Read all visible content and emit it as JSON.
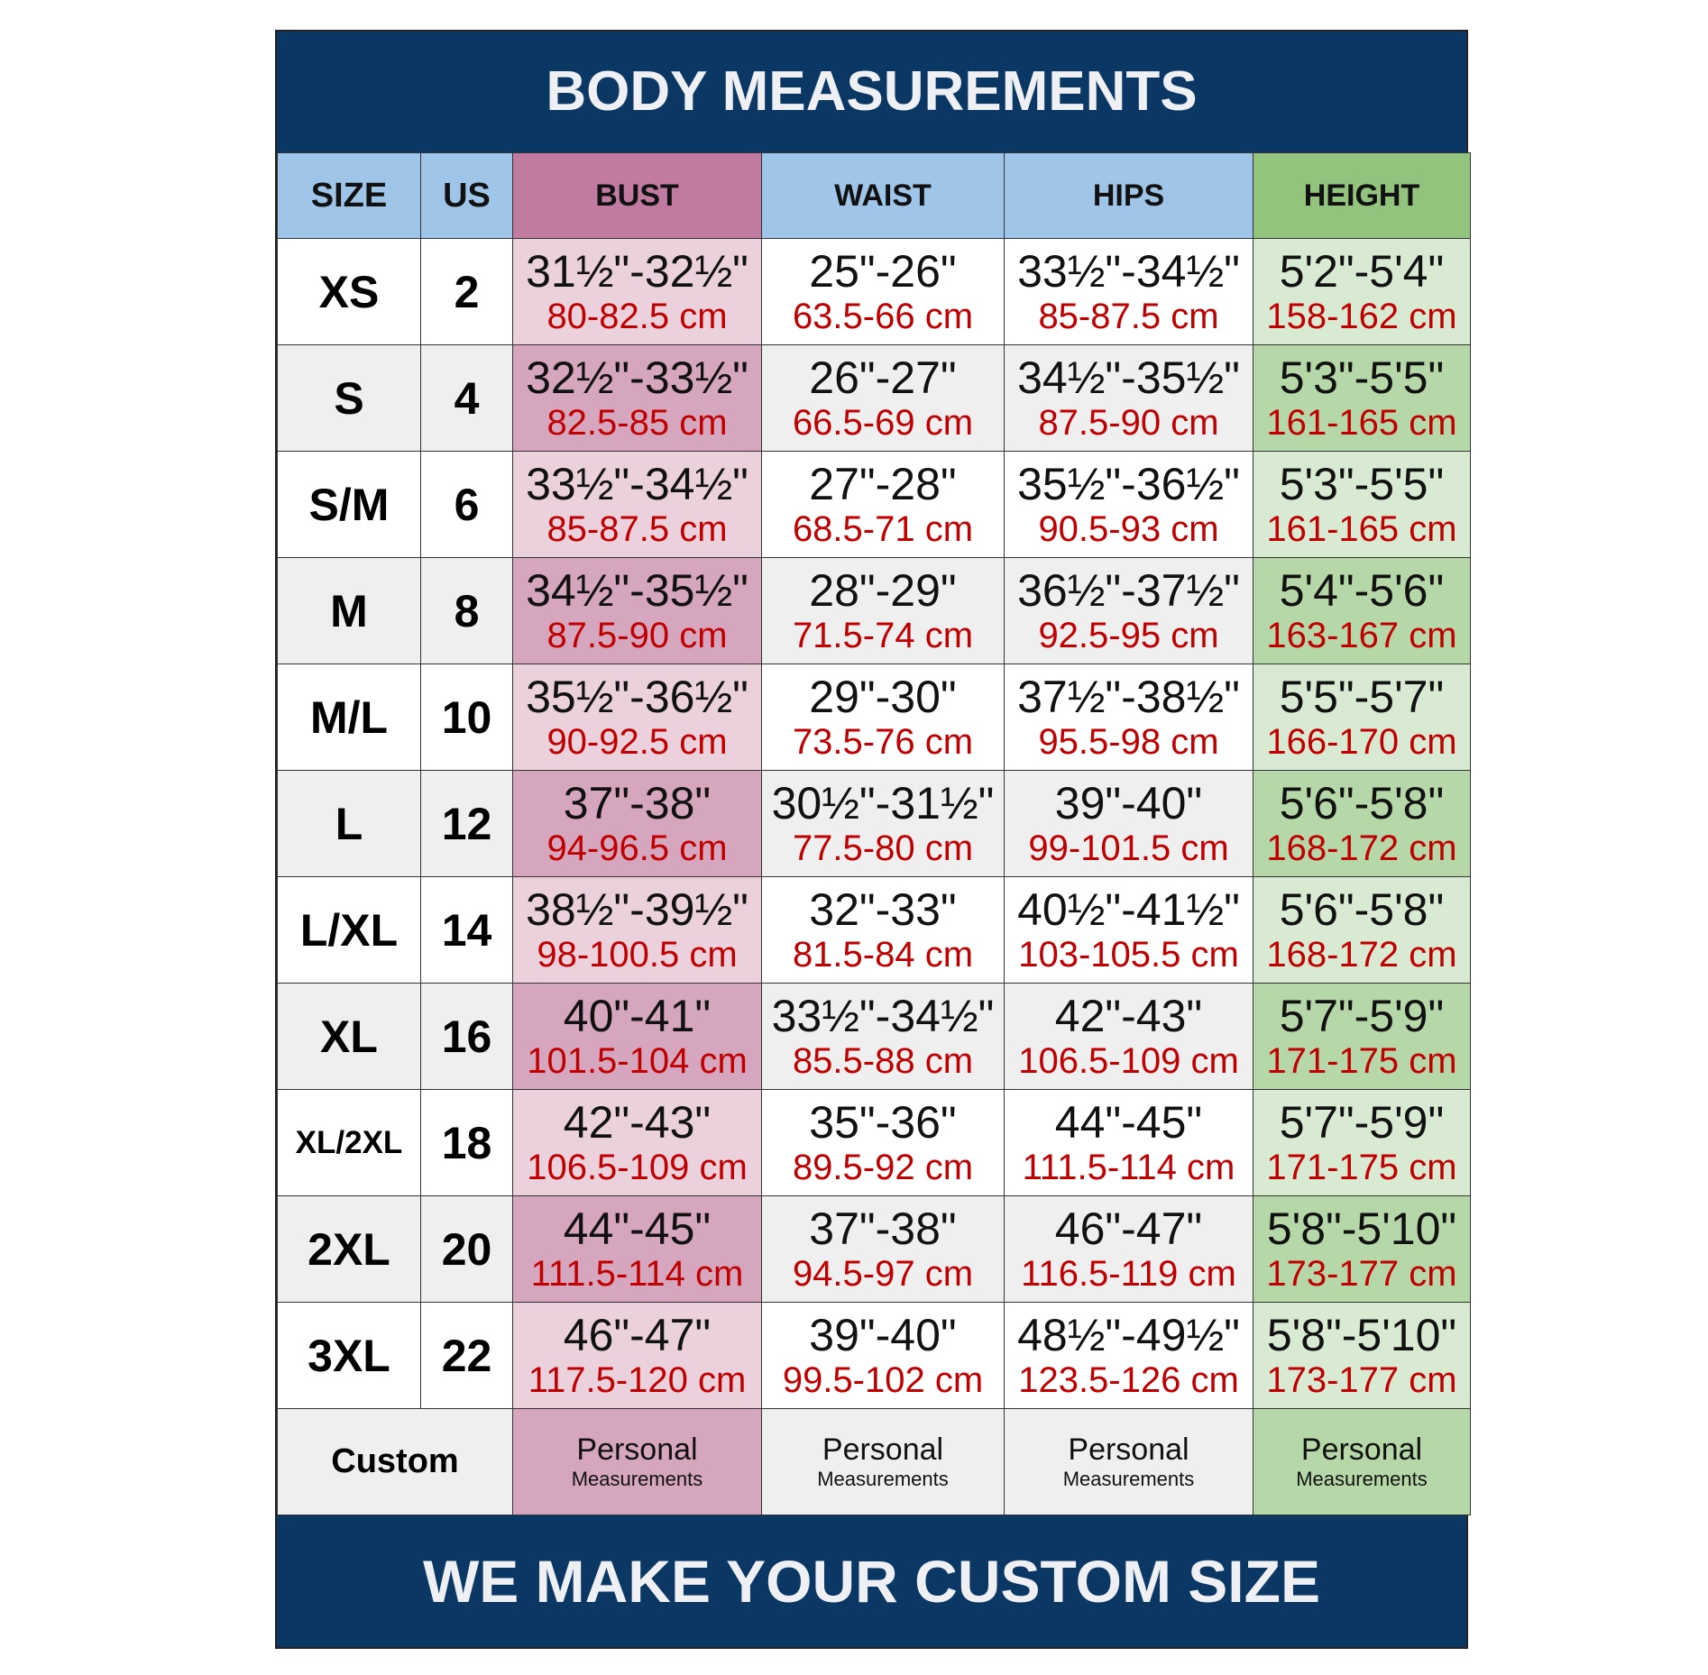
{
  "title": "BODY MEASUREMENTS",
  "footer": "WE MAKE YOUR CUSTOM SIZE",
  "colors": {
    "navy": "#0b3764",
    "header_blue": "#9fc5e8",
    "bust_header": "#c27ba0",
    "height_header": "#93c47d",
    "cm_text": "#c00000"
  },
  "headers": [
    "SIZE",
    "US",
    "BUST",
    "WAIST",
    "HIPS",
    "HEIGHT"
  ],
  "rows": [
    {
      "size": "XS",
      "us": "2",
      "bust": [
        "31½\"-32½\"",
        "80-82.5 cm"
      ],
      "waist": [
        "25\"-26\"",
        "63.5-66 cm"
      ],
      "hips": [
        "33½\"-34½\"",
        "85-87.5 cm"
      ],
      "height": [
        "5'2\"-5'4\"",
        "158-162 cm"
      ]
    },
    {
      "size": "S",
      "us": "4",
      "bust": [
        "32½\"-33½\"",
        "82.5-85 cm"
      ],
      "waist": [
        "26\"-27\"",
        "66.5-69 cm"
      ],
      "hips": [
        "34½\"-35½\"",
        "87.5-90 cm"
      ],
      "height": [
        "5'3\"-5'5\"",
        "161-165 cm"
      ]
    },
    {
      "size": "S/M",
      "us": "6",
      "bust": [
        "33½\"-34½\"",
        "85-87.5 cm"
      ],
      "waist": [
        "27\"-28\"",
        "68.5-71 cm"
      ],
      "hips": [
        "35½\"-36½\"",
        "90.5-93 cm"
      ],
      "height": [
        "5'3\"-5'5\"",
        "161-165 cm"
      ]
    },
    {
      "size": "M",
      "us": "8",
      "bust": [
        "34½\"-35½\"",
        "87.5-90 cm"
      ],
      "waist": [
        "28\"-29\"",
        "71.5-74 cm"
      ],
      "hips": [
        "36½\"-37½\"",
        "92.5-95 cm"
      ],
      "height": [
        "5'4\"-5'6\"",
        "163-167 cm"
      ]
    },
    {
      "size": "M/L",
      "us": "10",
      "bust": [
        "35½\"-36½\"",
        "90-92.5 cm"
      ],
      "waist": [
        "29\"-30\"",
        "73.5-76 cm"
      ],
      "hips": [
        "37½\"-38½\"",
        "95.5-98 cm"
      ],
      "height": [
        "5'5\"-5'7\"",
        "166-170 cm"
      ]
    },
    {
      "size": "L",
      "us": "12",
      "bust": [
        "37\"-38\"",
        "94-96.5 cm"
      ],
      "waist": [
        "30½\"-31½\"",
        "77.5-80 cm"
      ],
      "hips": [
        "39\"-40\"",
        "99-101.5 cm"
      ],
      "height": [
        "5'6\"-5'8\"",
        "168-172 cm"
      ]
    },
    {
      "size": "L/XL",
      "us": "14",
      "bust": [
        "38½\"-39½\"",
        "98-100.5 cm"
      ],
      "waist": [
        "32\"-33\"",
        "81.5-84 cm"
      ],
      "hips": [
        "40½\"-41½\"",
        "103-105.5 cm"
      ],
      "height": [
        "5'6\"-5'8\"",
        "168-172 cm"
      ]
    },
    {
      "size": "XL",
      "us": "16",
      "bust": [
        "40\"-41\"",
        "101.5-104 cm"
      ],
      "waist": [
        "33½\"-34½\"",
        "85.5-88 cm"
      ],
      "hips": [
        "42\"-43\"",
        "106.5-109 cm"
      ],
      "height": [
        "5'7\"-5'9\"",
        "171-175 cm"
      ]
    },
    {
      "size": "XL/2XL",
      "us": "18",
      "bust": [
        "42\"-43\"",
        "106.5-109 cm"
      ],
      "waist": [
        "35\"-36\"",
        "89.5-92 cm"
      ],
      "hips": [
        "44\"-45\"",
        "111.5-114 cm"
      ],
      "height": [
        "5'7\"-5'9\"",
        "171-175 cm"
      ]
    },
    {
      "size": "2XL",
      "us": "20",
      "bust": [
        "44\"-45\"",
        "111.5-114 cm"
      ],
      "waist": [
        "37\"-38\"",
        "94.5-97 cm"
      ],
      "hips": [
        "46\"-47\"",
        "116.5-119 cm"
      ],
      "height": [
        "5'8\"-5'10\"",
        "173-177 cm"
      ]
    },
    {
      "size": "3XL",
      "us": "22",
      "bust": [
        "46\"-47\"",
        "117.5-120 cm"
      ],
      "waist": [
        "39\"-40\"",
        "99.5-102 cm"
      ],
      "hips": [
        "48½\"-49½\"",
        "123.5-126 cm"
      ],
      "height": [
        "5'8\"-5'10\"",
        "173-177 cm"
      ]
    }
  ],
  "custom": {
    "label": "Custom",
    "line1": "Personal",
    "line2": "Measurements"
  }
}
